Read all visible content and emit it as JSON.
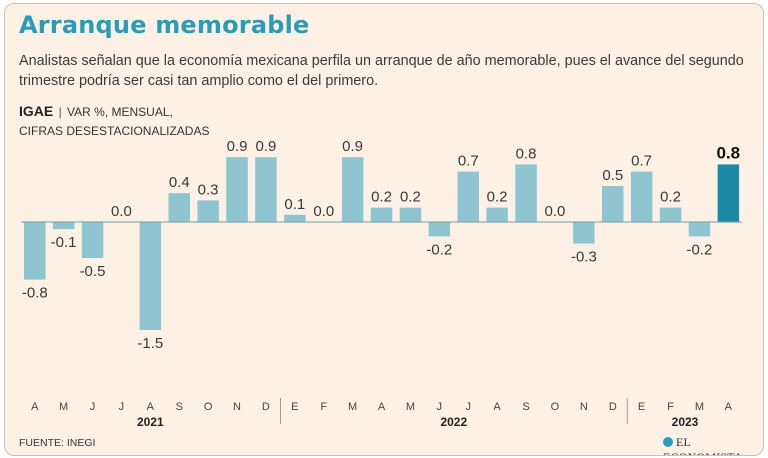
{
  "title": "Arranque memorable",
  "subtitle": "Analistas señalan que la economía mexicana perfila un arranque de año memorable, pues el avance del segundo trimestre podría ser casi tan amplio como el del primero.",
  "series_name": "IGAE",
  "series_units_line1": "VAR %, MENSUAL,",
  "series_units_line2": "CIFRAS DESESTACIONALIZADAS",
  "source": "FUENTE: INEGI",
  "brand": "EL ECONOMISTA",
  "colors": {
    "bar": "#8fc5d1",
    "bar_highlight": "#1c8aa7",
    "title": "#2a9bb8",
    "background": "#fdf1e6"
  },
  "chart_data": {
    "type": "bar",
    "title": "IGAE",
    "ylabel": "VAR %, MENSUAL, CIFRAS DESESTACIONALIZADAS",
    "xlabel": "",
    "ylim": [
      -1.5,
      0.9
    ],
    "grid": false,
    "categories": [
      "A",
      "M",
      "J",
      "J",
      "A",
      "S",
      "O",
      "N",
      "D",
      "E",
      "F",
      "M",
      "A",
      "M",
      "J",
      "J",
      "A",
      "S",
      "O",
      "N",
      "D",
      "E",
      "F",
      "M",
      "A"
    ],
    "values": [
      -0.8,
      -0.1,
      -0.5,
      0.0,
      -1.5,
      0.4,
      0.3,
      0.9,
      0.9,
      0.1,
      0.0,
      0.9,
      0.2,
      0.2,
      -0.2,
      0.7,
      0.2,
      0.8,
      0.0,
      -0.3,
      0.5,
      0.7,
      0.2,
      -0.2,
      0.8
    ],
    "value_labels": [
      "-0.8",
      "-0.1",
      "-0.5",
      "0.0",
      "-1.5",
      "0.4",
      "0.3",
      "0.9",
      "0.9",
      "0.1",
      "0.0",
      "0.9",
      "0.2",
      "0.2",
      "-0.2",
      "0.7",
      "0.2",
      "0.8",
      "0.0",
      "-0.3",
      "0.5",
      "0.7",
      "0.2",
      "-0.2",
      "0.8"
    ],
    "highlight_index": 24,
    "years": [
      {
        "label": "2021",
        "start": 0,
        "end": 8
      },
      {
        "label": "2022",
        "start": 9,
        "end": 20
      },
      {
        "label": "2023",
        "start": 21,
        "end": 24
      }
    ]
  }
}
